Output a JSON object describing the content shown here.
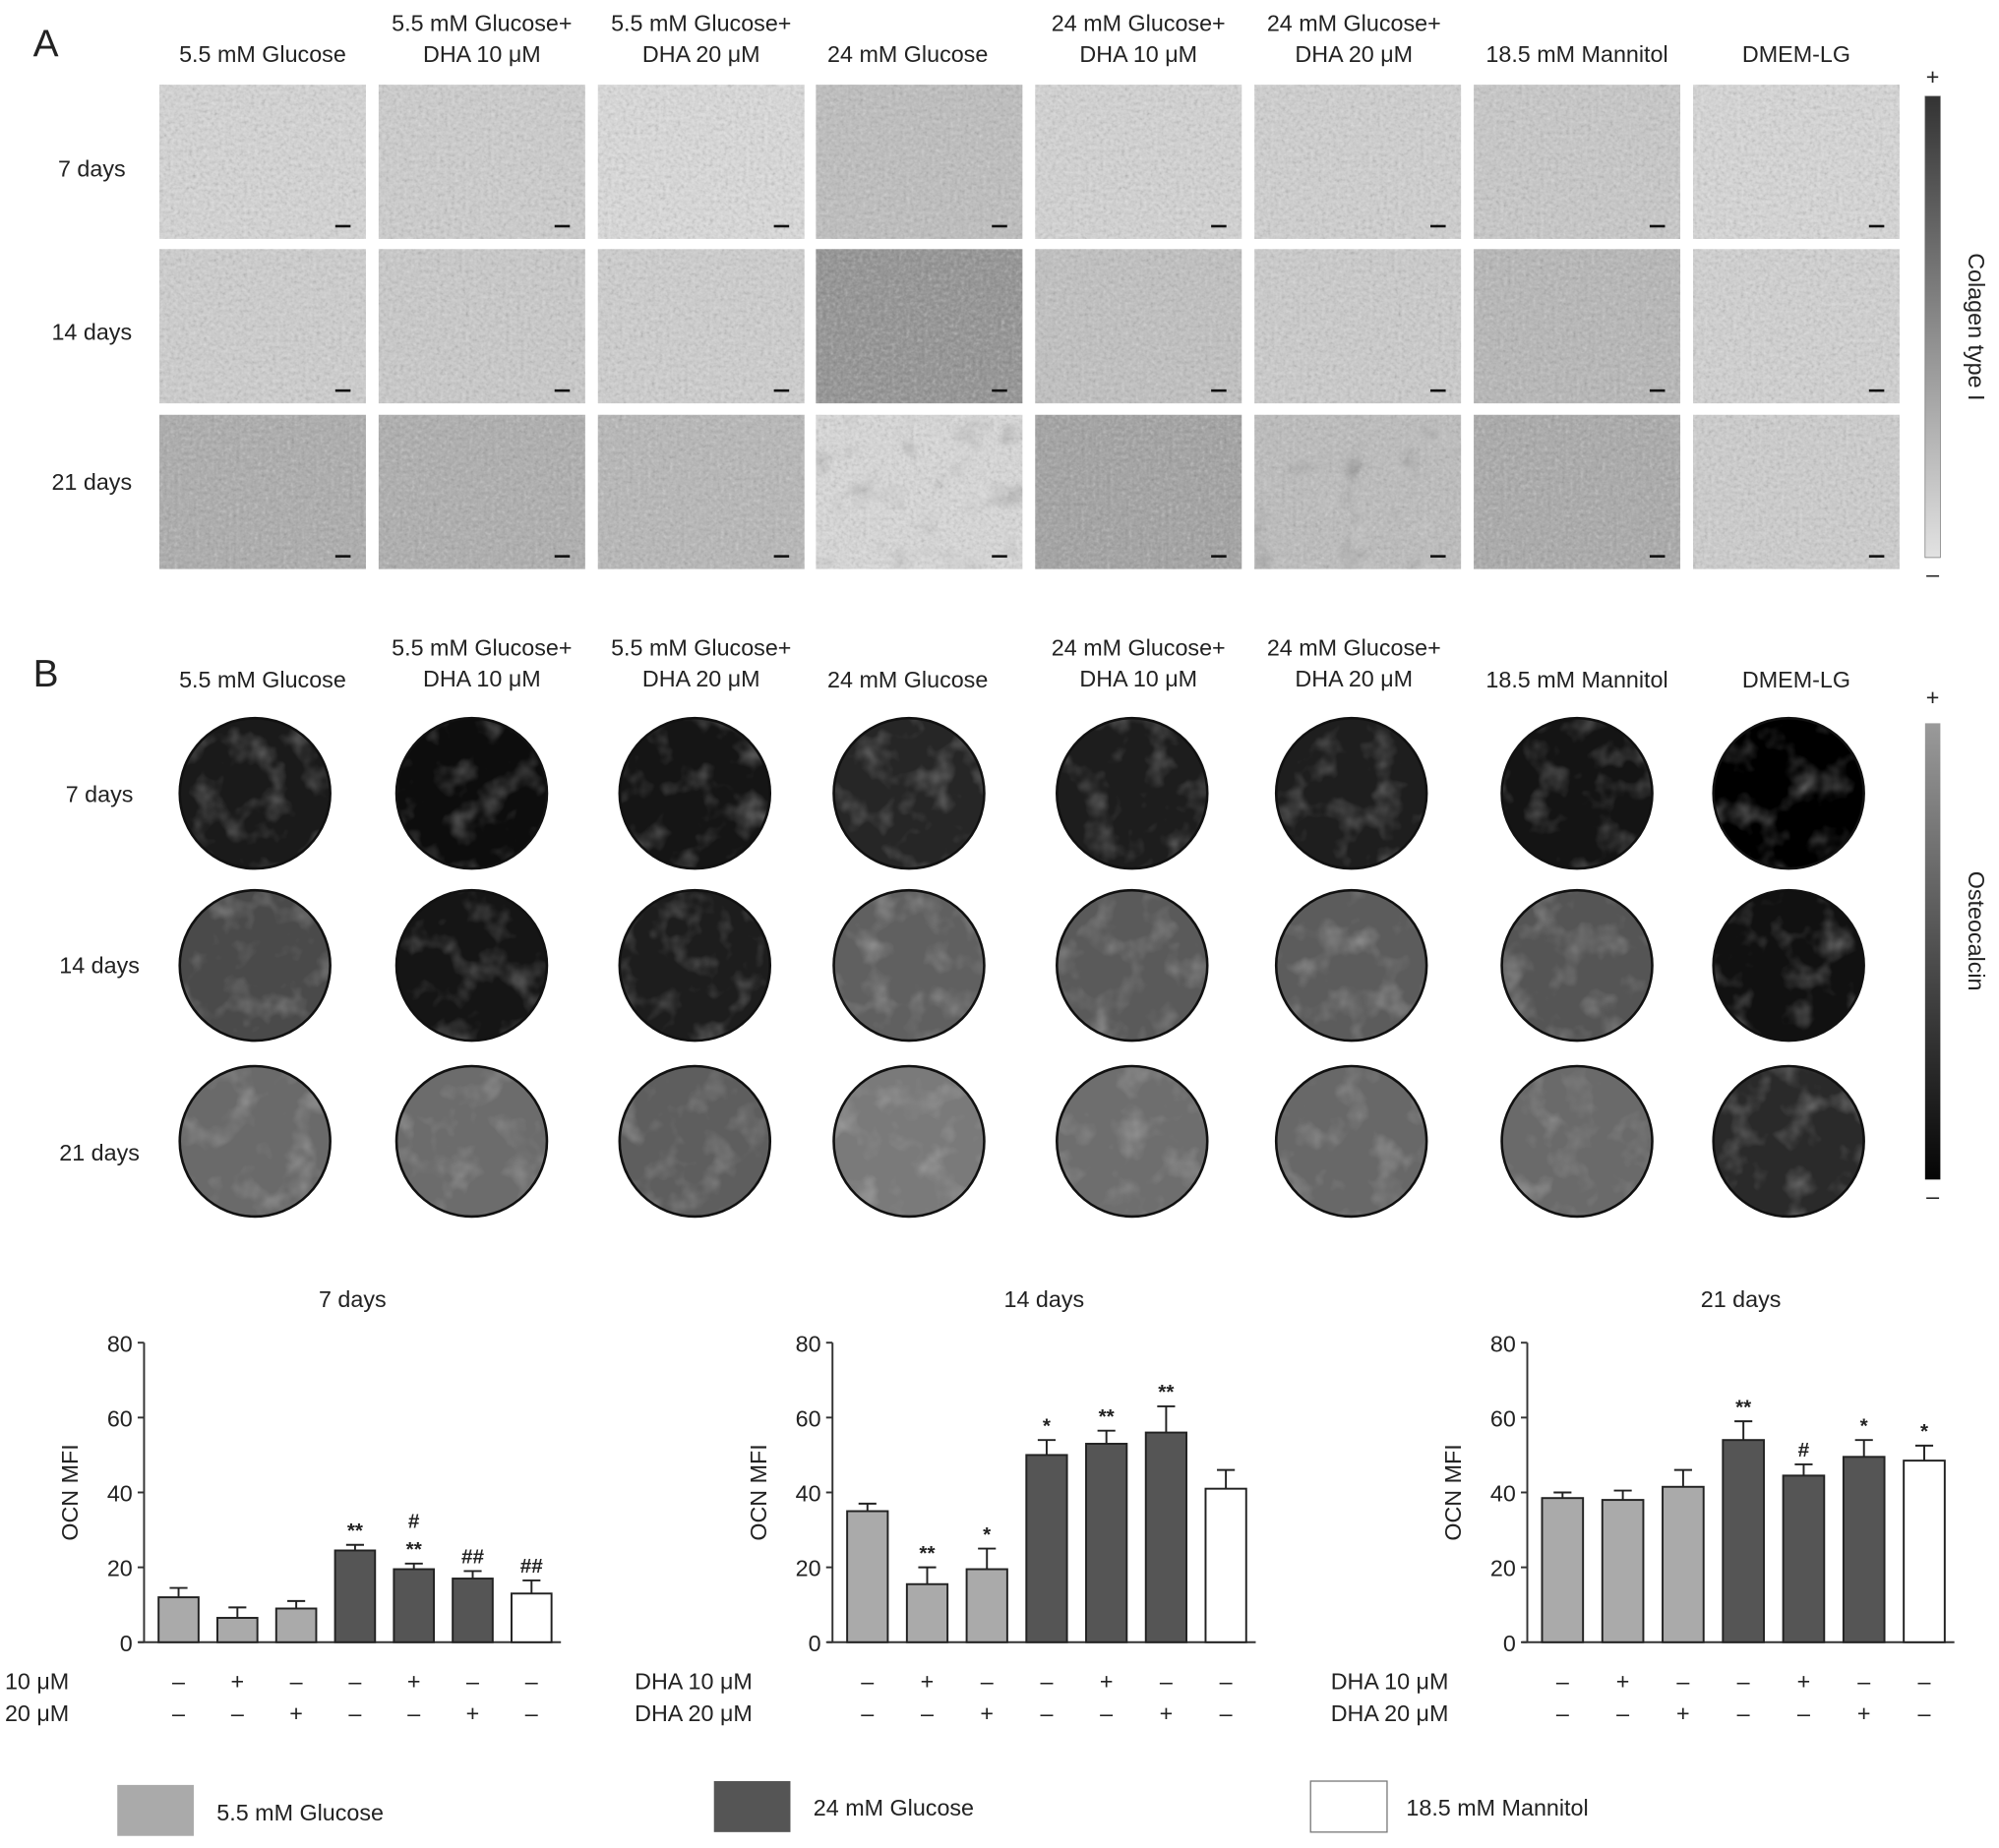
{
  "panel_a": {
    "label": "A",
    "columns": [
      [
        "5.5 mM Glucose"
      ],
      [
        "5.5 mM Glucose+",
        "DHA 10 μM"
      ],
      [
        "5.5 mM Glucose+",
        "DHA 20 μM"
      ],
      [
        "24 mM Glucose"
      ],
      [
        "24 mM Glucose+",
        "DHA 10 μM"
      ],
      [
        "24 mM Glucose+",
        "DHA 20 μM"
      ],
      [
        "18.5 mM Mannitol"
      ],
      [
        "DMEM-LG"
      ]
    ],
    "rows": [
      "7 days",
      "14 days",
      "21 days"
    ],
    "colorbar": {
      "label": "Colagen type I",
      "plus": "+",
      "minus": "–"
    }
  },
  "panel_b": {
    "label": "B",
    "columns": [
      [
        "5.5 mM Glucose"
      ],
      [
        "5.5 mM Glucose+",
        "DHA 10 μM"
      ],
      [
        "5.5 mM Glucose+",
        "DHA 20 μM"
      ],
      [
        "24 mM Glucose"
      ],
      [
        "24 mM Glucose+",
        "DHA 10 μM"
      ],
      [
        "24 mM Glucose+",
        "DHA 20 μM"
      ],
      [
        "18.5 mM Mannitol"
      ],
      [
        "DMEM-LG"
      ]
    ],
    "rows": [
      "7 days",
      "14 days",
      "21 days"
    ],
    "colorbar": {
      "label": "Osteocalcin",
      "plus": "+",
      "minus": "–"
    }
  },
  "chart_data": [
    {
      "type": "bar",
      "title": "7 days",
      "ylabel": "OCN MFI",
      "ylim": [
        0,
        80
      ],
      "yticks": [
        0,
        20,
        40,
        60,
        80
      ],
      "values": [
        12,
        6.5,
        9,
        24.5,
        19.5,
        17,
        13
      ],
      "error_upper": [
        2.5,
        2.8,
        2,
        1.5,
        1.5,
        2,
        3.5
      ],
      "groups": [
        "5.5 mM Glucose",
        "5.5 mM Glucose",
        "5.5 mM Glucose",
        "24 mM Glucose",
        "24 mM Glucose",
        "24 mM Glucose",
        "18.5 mM Mannitol"
      ],
      "annotations": [
        [],
        [],
        [],
        [
          "**"
        ],
        [
          "#",
          "**"
        ],
        [
          "##"
        ],
        [
          "##"
        ]
      ],
      "dha10": [
        "–",
        "+",
        "–",
        "–",
        "+",
        "–",
        "–"
      ],
      "dha20": [
        "–",
        "–",
        "+",
        "–",
        "–",
        "+",
        "–"
      ]
    },
    {
      "type": "bar",
      "title": "14 days",
      "ylabel": "OCN MFI",
      "ylim": [
        0,
        80
      ],
      "yticks": [
        0,
        20,
        40,
        60,
        80
      ],
      "values": [
        35,
        15.5,
        19.5,
        50,
        53,
        56,
        41
      ],
      "error_upper": [
        2,
        4.5,
        5.5,
        4,
        3.5,
        7,
        5
      ],
      "groups": [
        "5.5 mM Glucose",
        "5.5 mM Glucose",
        "5.5 mM Glucose",
        "24 mM Glucose",
        "24 mM Glucose",
        "24 mM Glucose",
        "18.5 mM Mannitol"
      ],
      "annotations": [
        [],
        [
          "**"
        ],
        [
          "*"
        ],
        [
          "*"
        ],
        [
          "**"
        ],
        [
          "**"
        ],
        []
      ],
      "dha10": [
        "–",
        "+",
        "–",
        "–",
        "+",
        "–",
        "–"
      ],
      "dha20": [
        "–",
        "–",
        "+",
        "–",
        "–",
        "+",
        "–"
      ]
    },
    {
      "type": "bar",
      "title": "21 days",
      "ylabel": "OCN MFI",
      "ylim": [
        0,
        80
      ],
      "yticks": [
        0,
        20,
        40,
        60,
        80
      ],
      "values": [
        38.5,
        38,
        41.5,
        54,
        44.5,
        49.5,
        48.5
      ],
      "error_upper": [
        1.5,
        2.5,
        4.5,
        5,
        3,
        4.5,
        4
      ],
      "groups": [
        "5.5 mM Glucose",
        "5.5 mM Glucose",
        "5.5 mM Glucose",
        "24 mM Glucose",
        "24 mM Glucose",
        "24 mM Glucose",
        "18.5 mM Mannitol"
      ],
      "annotations": [
        [],
        [],
        [],
        [
          "**"
        ],
        [
          "#"
        ],
        [
          "*"
        ],
        [
          "*"
        ]
      ],
      "dha10": [
        "–",
        "+",
        "–",
        "–",
        "+",
        "–",
        "–"
      ],
      "dha20": [
        "–",
        "–",
        "+",
        "–",
        "–",
        "+",
        "–"
      ]
    }
  ],
  "row_labels": {
    "dha10": "DHA 10 μM",
    "dha20": "DHA 20 μM"
  },
  "legend": [
    {
      "label": "5.5 mM Glucose",
      "color": "#aaaaaa"
    },
    {
      "label": "24 mM Glucose",
      "color": "#555555"
    },
    {
      "label": "18.5 mM Mannitol",
      "color": "#ffffff"
    }
  ]
}
